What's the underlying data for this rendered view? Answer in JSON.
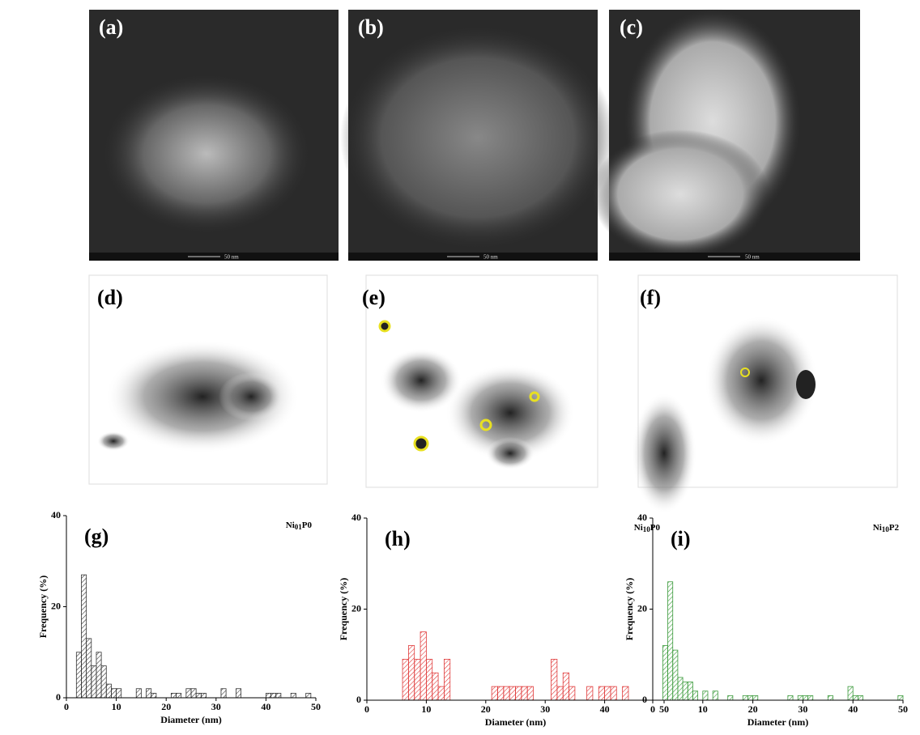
{
  "panels": [
    {
      "label": "(a)",
      "scale_bar": "50 nm"
    },
    {
      "label": "(b)",
      "scale_bar": "50 nm"
    },
    {
      "label": "(c)",
      "scale_bar": "50 nm"
    },
    {
      "label": "(d)"
    },
    {
      "label": "(e)"
    },
    {
      "label": "(f)"
    }
  ],
  "chart_data": [
    {
      "type": "histogram",
      "panel": "(g)",
      "annotation": [
        "Ni",
        "01",
        "P0"
      ],
      "xlabel": "Diameter (nm)",
      "ylabel": "Frequency (%)",
      "color": "#333333",
      "bins": [
        0,
        1,
        2,
        3,
        4,
        5,
        6,
        7,
        8,
        9,
        10,
        11,
        12,
        13,
        14,
        15,
        16,
        17,
        18,
        19,
        20,
        21,
        22,
        23,
        24,
        25,
        26,
        27,
        28,
        29,
        30,
        31,
        32,
        33,
        34,
        35,
        36,
        37,
        38,
        39,
        40,
        41,
        42,
        43,
        44,
        45,
        46,
        47,
        48,
        49,
        50
      ],
      "values": [
        0,
        0,
        10,
        27,
        13,
        7,
        10,
        7,
        3,
        2,
        2,
        0,
        0,
        0,
        2,
        0,
        2,
        1,
        0,
        0,
        0,
        1,
        1,
        0,
        2,
        2,
        1,
        1,
        0,
        0,
        0,
        2,
        0,
        0,
        2,
        0,
        0,
        0,
        0,
        0,
        1,
        1,
        1,
        0,
        0,
        1,
        0,
        0,
        1,
        0
      ],
      "xlim": [
        0,
        50
      ],
      "ylim": [
        0,
        40
      ],
      "xticks": [
        0,
        10,
        20,
        30,
        40,
        50
      ],
      "yticks": [
        0,
        20,
        40
      ]
    },
    {
      "type": "histogram",
      "panel": "(h)",
      "annotation": [
        "Ni",
        "10",
        "P0"
      ],
      "xlabel": "Diameter (nm)",
      "ylabel": "Frequency (%)",
      "color": "#e03a3a",
      "bins": [
        0,
        1,
        2,
        3,
        4,
        5,
        6,
        7,
        8,
        9,
        10,
        11,
        12,
        13,
        14,
        15,
        16,
        17,
        18,
        19,
        20,
        21,
        22,
        23,
        24,
        25,
        26,
        27,
        28,
        29,
        30,
        31,
        32,
        33,
        34,
        35,
        36,
        37,
        38,
        39,
        40,
        41,
        42,
        43,
        44,
        45,
        46,
        47,
        48,
        49,
        50
      ],
      "values": [
        0,
        0,
        0,
        0,
        0,
        0,
        9,
        12,
        9,
        15,
        9,
        6,
        3,
        9,
        0,
        0,
        0,
        0,
        0,
        0,
        0,
        3,
        3,
        3,
        3,
        3,
        3,
        3,
        0,
        0,
        0,
        9,
        3,
        6,
        3,
        0,
        0,
        3,
        0,
        3,
        3,
        3,
        0,
        3,
        0,
        0,
        0,
        0,
        0,
        0
      ],
      "xlim": [
        0,
        50
      ],
      "ylim": [
        0,
        40
      ],
      "xticks": [
        0,
        10,
        20,
        30,
        40,
        50
      ],
      "yticks": [
        0,
        20,
        40
      ]
    },
    {
      "type": "histogram",
      "panel": "(i)",
      "annotation": [
        "Ni",
        "10",
        "P2"
      ],
      "xlabel": "Diameter (nm)",
      "ylabel": "Frequency (%)",
      "color": "#3a9a3a",
      "bins": [
        0,
        1,
        2,
        3,
        4,
        5,
        6,
        7,
        8,
        9,
        10,
        11,
        12,
        13,
        14,
        15,
        16,
        17,
        18,
        19,
        20,
        21,
        22,
        23,
        24,
        25,
        26,
        27,
        28,
        29,
        30,
        31,
        32,
        33,
        34,
        35,
        36,
        37,
        38,
        39,
        40,
        41,
        42,
        43,
        44,
        45,
        46,
        47,
        48,
        49,
        50
      ],
      "values": [
        0,
        0,
        12,
        26,
        11,
        5,
        4,
        4,
        2,
        0,
        2,
        0,
        2,
        0,
        0,
        1,
        0,
        0,
        1,
        1,
        1,
        0,
        0,
        0,
        0,
        0,
        0,
        1,
        0,
        1,
        1,
        1,
        0,
        0,
        0,
        1,
        0,
        0,
        0,
        3,
        1,
        1,
        0,
        0,
        0,
        0,
        0,
        0,
        0,
        1
      ],
      "xlim": [
        0,
        50
      ],
      "ylim": [
        0,
        40
      ],
      "xticks": [
        0,
        10,
        20,
        30,
        40,
        50
      ],
      "yticks": [
        0,
        20,
        40
      ]
    }
  ]
}
